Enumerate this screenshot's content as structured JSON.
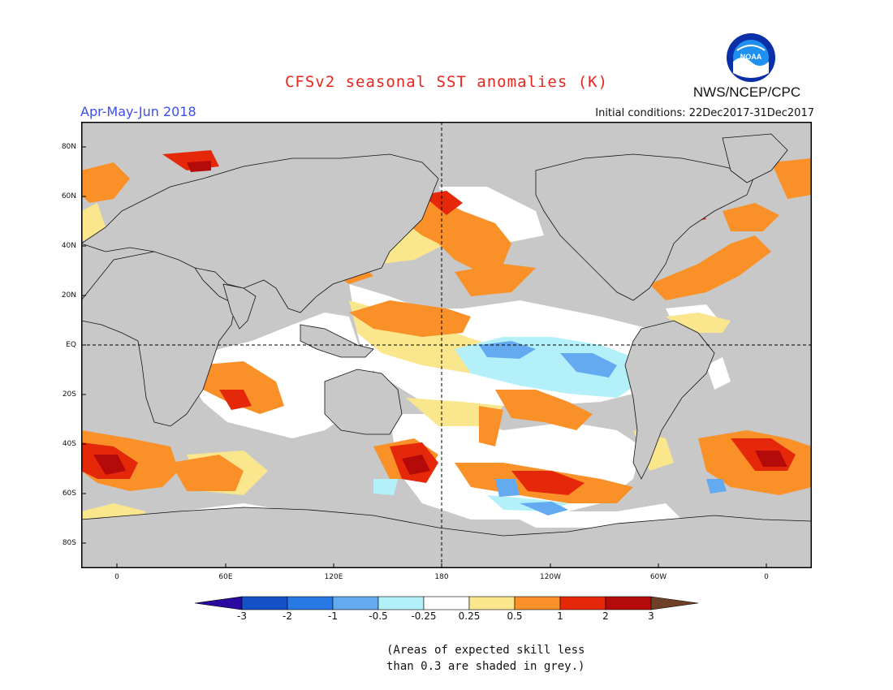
{
  "header": {
    "title": "CFSv2 seasonal SST anomalies (K)",
    "agency": "NWS/NCEP/CPC",
    "logo_text": "NOAA",
    "season": "Apr-May-Jun 2018",
    "initial_conditions": "Initial conditions: 22Dec2017-31Dec2017"
  },
  "map": {
    "lat_labels": [
      "80N",
      "60N",
      "40N",
      "20N",
      "EQ",
      "20S",
      "40S",
      "60S",
      "80S"
    ],
    "lon_labels": [
      "0",
      "60E",
      "120E",
      "180",
      "120W",
      "60W",
      "0"
    ],
    "land_color": "#c8c8c8",
    "ocean_neutral_color": "#ffffff"
  },
  "colorbar": {
    "labels": [
      "-3",
      "-2",
      "-1",
      "-0.5",
      "-0.25",
      "0.25",
      "0.5",
      "1",
      "2",
      "3"
    ],
    "colors": [
      "#2a0aa0",
      "#1450c8",
      "#2878e6",
      "#64aaf0",
      "#b4f0fa",
      "#ffffff",
      "#fae68c",
      "#fa9028",
      "#e6280a",
      "#b40a0a",
      "#6e4028"
    ]
  },
  "footnote": {
    "line1": "(Areas of expected skill less",
    "line2": "than 0.3 are shaded in grey.)"
  }
}
